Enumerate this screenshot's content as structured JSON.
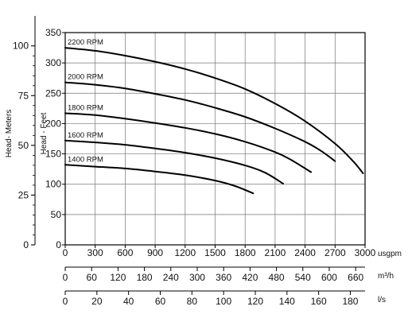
{
  "chart_data": {
    "type": "line",
    "title": "",
    "grid": true,
    "x": {
      "label": "usgpm",
      "range": [
        0,
        3000
      ],
      "ticks": [
        0,
        300,
        600,
        900,
        1200,
        1500,
        1800,
        2100,
        2400,
        2700,
        3000
      ]
    },
    "y": {
      "label": "Head - Feet",
      "range": [
        0,
        350
      ],
      "ticks": [
        0,
        50,
        100,
        150,
        200,
        250,
        300,
        350
      ]
    },
    "y_secondary": {
      "label": "Head- Meters",
      "range": [
        0,
        106.68
      ],
      "ticks": [
        0,
        25,
        50,
        75,
        100
      ]
    },
    "x_secondary": [
      {
        "label": "m³/h",
        "range": [
          0,
          681.4
        ],
        "ticks": [
          0,
          60,
          120,
          180,
          240,
          300,
          360,
          420,
          480,
          540,
          600,
          660
        ]
      },
      {
        "label": "l/s",
        "range": [
          0,
          189.3
        ],
        "ticks": [
          0,
          20,
          40,
          60,
          80,
          100,
          120,
          140,
          160,
          180
        ]
      }
    ],
    "series": [
      {
        "name": "2200 RPM",
        "x": [
          0,
          300,
          600,
          900,
          1200,
          1500,
          1800,
          2100,
          2400,
          2700,
          2880,
          2980
        ],
        "y": [
          325,
          320,
          312,
          302,
          290,
          275,
          257,
          233,
          204,
          167,
          138,
          118
        ]
      },
      {
        "name": "2000 RPM",
        "x": [
          0,
          300,
          600,
          900,
          1200,
          1500,
          1800,
          2100,
          2400,
          2560,
          2700
        ],
        "y": [
          268,
          264,
          258,
          249,
          239,
          226,
          211,
          192,
          170,
          155,
          138
        ]
      },
      {
        "name": "1800 RPM",
        "x": [
          0,
          300,
          600,
          900,
          1200,
          1500,
          1800,
          2100,
          2250,
          2460
        ],
        "y": [
          217,
          214,
          208,
          201,
          193,
          183,
          170,
          153,
          141,
          120
        ]
      },
      {
        "name": "1600 RPM",
        "x": [
          0,
          300,
          600,
          900,
          1200,
          1500,
          1800,
          2000,
          2180
        ],
        "y": [
          172,
          169,
          165,
          159,
          152,
          143,
          131,
          119,
          101
        ]
      },
      {
        "name": "1400 RPM",
        "x": [
          0,
          300,
          600,
          900,
          1200,
          1500,
          1700,
          1880
        ],
        "y": [
          132,
          129,
          126,
          121,
          115,
          106,
          97,
          85
        ]
      }
    ]
  }
}
